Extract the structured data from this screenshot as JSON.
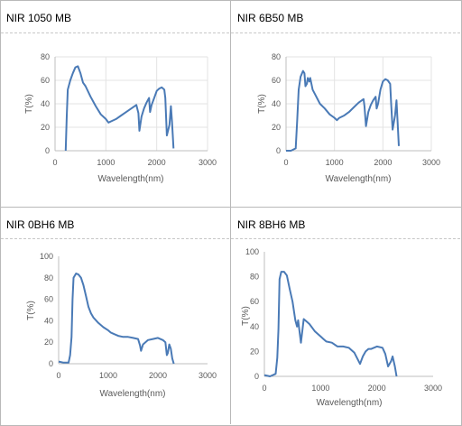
{
  "chart_data": [
    {
      "type": "line",
      "title": "NIR 1050  MB",
      "xlabel": "Wavelength(nm)",
      "ylabel": "T(%)",
      "xlim": [
        0,
        3000
      ],
      "ylim": [
        0,
        80
      ],
      "xticks": [
        0,
        1000,
        2000,
        3000
      ],
      "yticks": [
        0,
        20,
        40,
        60,
        80
      ],
      "grid": true,
      "series": [
        {
          "color": "#4a7ab6",
          "x": [
            210,
            230,
            250,
            300,
            350,
            400,
            450,
            500,
            550,
            600,
            700,
            800,
            900,
            1000,
            1050,
            1100,
            1200,
            1300,
            1400,
            1500,
            1600,
            1640,
            1660,
            1700,
            1750,
            1800,
            1850,
            1870,
            1900,
            1950,
            2000,
            2050,
            2100,
            2150,
            2170,
            2200,
            2250,
            2280,
            2300,
            2330
          ],
          "y": [
            0,
            30,
            52,
            60,
            66,
            71,
            72,
            66,
            58,
            55,
            46,
            38,
            31,
            27,
            24,
            25,
            27,
            30,
            33,
            36,
            39,
            32,
            17,
            29,
            36,
            41,
            45,
            33,
            39,
            45,
            51,
            53,
            54,
            52,
            45,
            13,
            22,
            38,
            25,
            2
          ]
        }
      ]
    },
    {
      "type": "line",
      "title": "NIR 6B50 MB",
      "xlabel": "Wavelength(nm)",
      "ylabel": "T(%)",
      "xlim": [
        0,
        3000
      ],
      "ylim": [
        0,
        80
      ],
      "xticks": [
        0,
        1000,
        2000,
        3000
      ],
      "yticks": [
        0,
        20,
        40,
        60,
        80
      ],
      "grid": true,
      "series": [
        {
          "color": "#4a7ab6",
          "x": [
            0,
            100,
            200,
            230,
            260,
            300,
            350,
            380,
            400,
            430,
            450,
            480,
            500,
            550,
            600,
            700,
            800,
            900,
            1000,
            1050,
            1100,
            1200,
            1300,
            1400,
            1500,
            1600,
            1620,
            1650,
            1700,
            1750,
            1800,
            1850,
            1870,
            1900,
            1950,
            2000,
            2050,
            2100,
            2150,
            2170,
            2200,
            2250,
            2280,
            2300,
            2330
          ],
          "y": [
            0,
            0,
            2,
            25,
            52,
            63,
            68,
            66,
            55,
            57,
            62,
            59,
            62,
            52,
            48,
            40,
            36,
            31,
            28,
            26,
            28,
            30,
            33,
            37,
            41,
            44,
            38,
            21,
            33,
            39,
            43,
            46,
            36,
            40,
            52,
            59,
            61,
            60,
            57,
            40,
            18,
            30,
            43,
            28,
            4
          ]
        }
      ]
    },
    {
      "type": "line",
      "title": "NIR 0BH6 MB",
      "xlabel": "Wavelength(nm)",
      "ylabel": "T(%)",
      "xlim": [
        0,
        3000
      ],
      "ylim": [
        0,
        100
      ],
      "xticks": [
        0,
        1000,
        2000,
        3000
      ],
      "yticks": [
        0,
        20,
        40,
        60,
        80,
        100
      ],
      "grid": false,
      "series": [
        {
          "color": "#4a7ab6",
          "x": [
            0,
            100,
            200,
            230,
            260,
            280,
            300,
            350,
            400,
            450,
            500,
            550,
            600,
            650,
            700,
            800,
            900,
            1000,
            1050,
            1100,
            1200,
            1300,
            1400,
            1500,
            1600,
            1640,
            1660,
            1700,
            1800,
            1900,
            2000,
            2100,
            2150,
            2180,
            2200,
            2230,
            2260,
            2290,
            2320
          ],
          "y": [
            2,
            1,
            1,
            8,
            25,
            60,
            80,
            84,
            83,
            80,
            73,
            63,
            53,
            47,
            43,
            38,
            34,
            31,
            29,
            28,
            26,
            25,
            25,
            24,
            23,
            17,
            12,
            18,
            22,
            23,
            24,
            22,
            20,
            8,
            10,
            18,
            14,
            5,
            0
          ]
        }
      ]
    },
    {
      "type": "line",
      "title": "NIR 8BH6 MB",
      "xlabel": "Wavelength(nm)",
      "ylabel": "T(%)",
      "xlim": [
        0,
        3000
      ],
      "ylim": [
        0,
        100
      ],
      "xticks": [
        0,
        1000,
        2000,
        3000
      ],
      "yticks": [
        0,
        20,
        40,
        60,
        80,
        100
      ],
      "grid": false,
      "series": [
        {
          "color": "#4a7ab6",
          "x": [
            0,
            100,
            200,
            230,
            250,
            270,
            300,
            350,
            400,
            450,
            500,
            550,
            580,
            600,
            650,
            700,
            750,
            800,
            900,
            1000,
            1050,
            1100,
            1200,
            1300,
            1400,
            1500,
            1600,
            1700,
            1750,
            1800,
            1850,
            1900,
            2000,
            2100,
            2150,
            2200,
            2250,
            2280,
            2320,
            2350
          ],
          "y": [
            1,
            0,
            2,
            15,
            38,
            78,
            84,
            84,
            81,
            70,
            60,
            45,
            40,
            45,
            27,
            46,
            44,
            42,
            36,
            32,
            30,
            28,
            27,
            24,
            24,
            23,
            19,
            10,
            16,
            20,
            22,
            22,
            24,
            23,
            18,
            8,
            12,
            16,
            8,
            0
          ]
        }
      ]
    }
  ]
}
